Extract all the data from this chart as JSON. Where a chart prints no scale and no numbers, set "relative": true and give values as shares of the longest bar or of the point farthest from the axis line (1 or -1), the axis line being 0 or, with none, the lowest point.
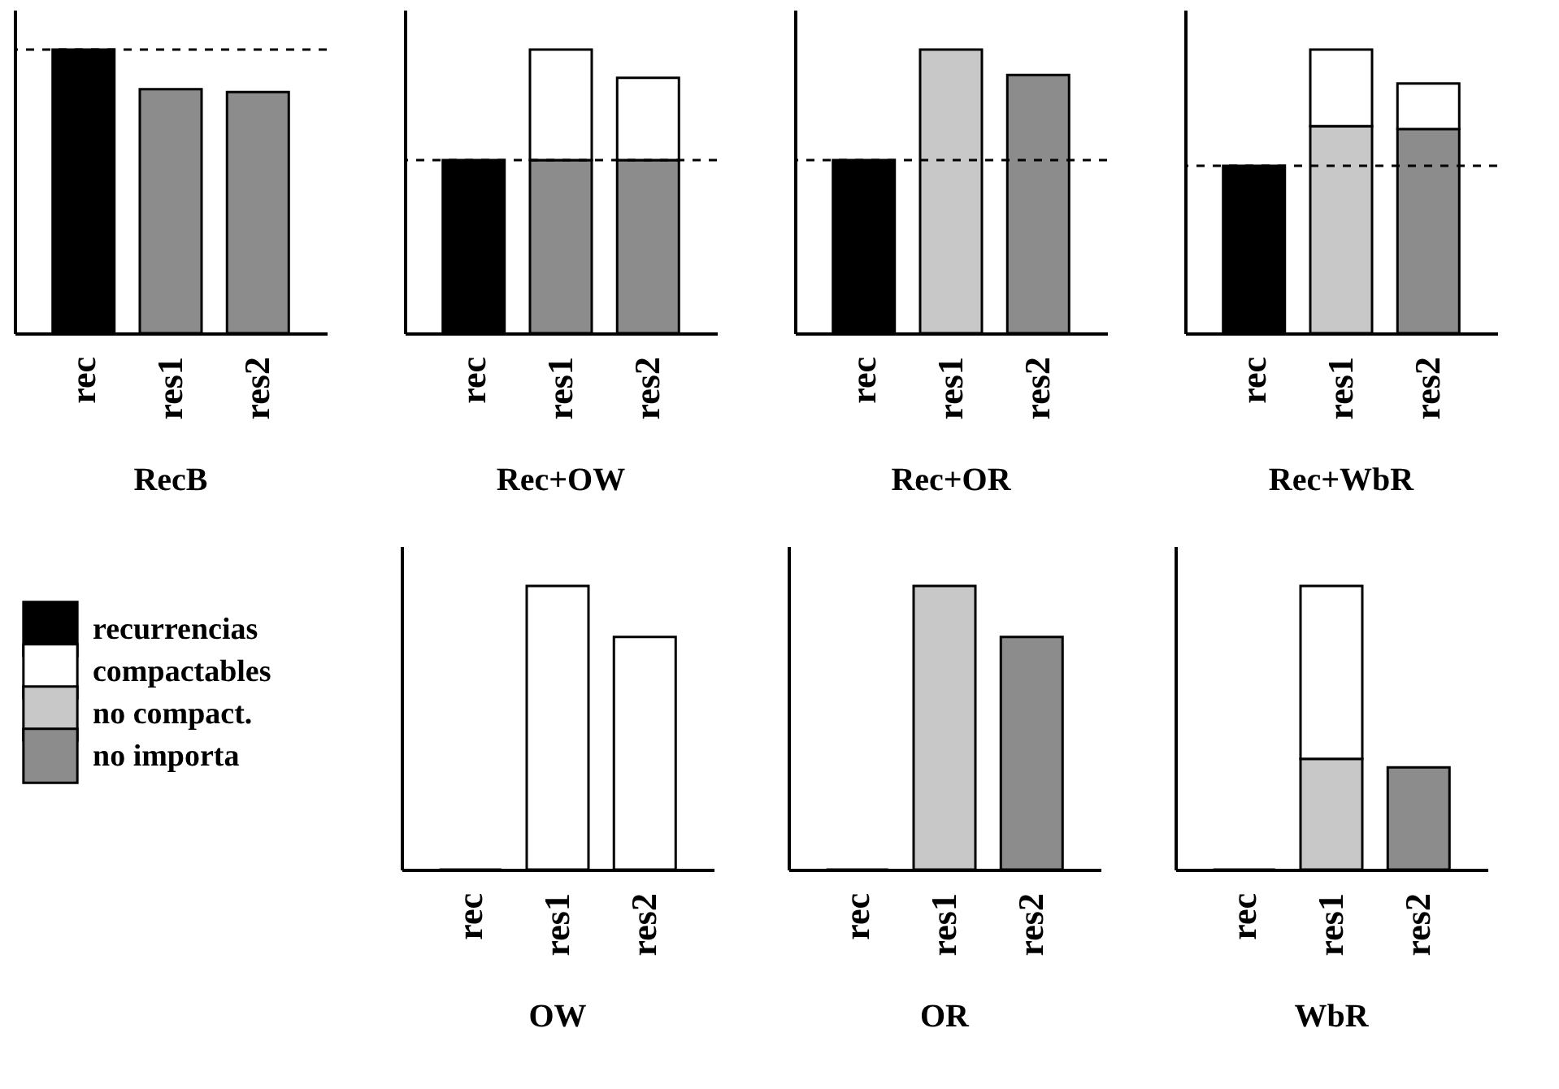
{
  "chart_data": [
    {
      "type": "bar",
      "title": "RecB",
      "stacked": true,
      "relative": true,
      "categories": [
        "rec",
        "res1",
        "res2"
      ],
      "ref_lines": [
        {
          "axis": "y",
          "value": 1,
          "line_style": "dashed"
        }
      ],
      "series": [
        {
          "color": "#000000",
          "values": [
            1,
            null,
            null
          ]
        },
        {
          "color": "#8c8c8c",
          "values": [
            null,
            0.86,
            0.85
          ]
        }
      ]
    },
    {
      "type": "bar",
      "title": "Rec+OW",
      "stacked": true,
      "relative": true,
      "categories": [
        "rec",
        "res1",
        "res2"
      ],
      "ref_lines": [
        {
          "axis": "y",
          "value": 0.61,
          "line_style": "dashed"
        }
      ],
      "series": [
        {
          "color": "#000000",
          "values": [
            0.61,
            null,
            null
          ]
        },
        {
          "color": "#8c8c8c",
          "values": [
            null,
            0.61,
            0.61
          ]
        },
        {
          "color": "#ffffff",
          "values": [
            null,
            0.39,
            0.29
          ]
        }
      ]
    },
    {
      "type": "bar",
      "title": "Rec+OR",
      "stacked": true,
      "relative": true,
      "categories": [
        "rec",
        "res1",
        "res2"
      ],
      "ref_lines": [
        {
          "axis": "y",
          "value": 0.61,
          "line_style": "dashed"
        }
      ],
      "series": [
        {
          "color": "#000000",
          "values": [
            0.61,
            null,
            null
          ]
        },
        {
          "color": "#8c8c8c",
          "values": [
            null,
            null,
            0.91
          ]
        },
        {
          "color": "#c8c8c8",
          "values": [
            null,
            1,
            null
          ]
        }
      ]
    },
    {
      "type": "bar",
      "title": "Rec+WbR",
      "stacked": true,
      "relative": true,
      "categories": [
        "rec",
        "res1",
        "res2"
      ],
      "ref_lines": [
        {
          "axis": "y",
          "value": 0.59,
          "line_style": "dashed"
        }
      ],
      "series": [
        {
          "color": "#000000",
          "values": [
            0.59,
            null,
            null
          ]
        },
        {
          "color": "#8c8c8c",
          "values": [
            null,
            null,
            0.72
          ]
        },
        {
          "color": "#c8c8c8",
          "values": [
            null,
            0.73,
            null
          ]
        },
        {
          "color": "#ffffff",
          "values": [
            null,
            0.27,
            0.16
          ]
        }
      ]
    },
    {
      "type": "bar",
      "title": "OW",
      "stacked": true,
      "relative": true,
      "legend": "left",
      "categories": [
        "rec",
        "res1",
        "res2"
      ],
      "series": [
        {
          "name": "recurrencias",
          "color": "#000000",
          "values": [
            0,
            null,
            null
          ]
        },
        {
          "name": "compactables",
          "color": "#ffffff",
          "values": [
            null,
            1,
            0.82
          ]
        },
        {
          "name": "no compact.",
          "color": "#c8c8c8",
          "values": [
            null,
            null,
            null
          ]
        },
        {
          "name": "no importa",
          "color": "#8c8c8c",
          "values": [
            null,
            null,
            null
          ]
        }
      ]
    },
    {
      "type": "bar",
      "title": "OR",
      "stacked": true,
      "relative": true,
      "categories": [
        "rec",
        "res1",
        "res2"
      ],
      "series": [
        {
          "color": "#000000",
          "values": [
            0,
            null,
            null
          ]
        },
        {
          "color": "#8c8c8c",
          "values": [
            null,
            null,
            0.82
          ]
        },
        {
          "color": "#c8c8c8",
          "values": [
            null,
            1,
            null
          ]
        }
      ]
    },
    {
      "type": "bar",
      "title": "WbR",
      "stacked": true,
      "relative": true,
      "categories": [
        "rec",
        "res1",
        "res2"
      ],
      "series": [
        {
          "color": "#000000",
          "values": [
            0,
            null,
            null
          ]
        },
        {
          "color": "#8c8c8c",
          "values": [
            null,
            null,
            0.36
          ]
        },
        {
          "color": "#c8c8c8",
          "values": [
            null,
            0.39,
            null
          ]
        },
        {
          "color": "#ffffff",
          "values": [
            null,
            0.61,
            null
          ]
        }
      ]
    }
  ]
}
